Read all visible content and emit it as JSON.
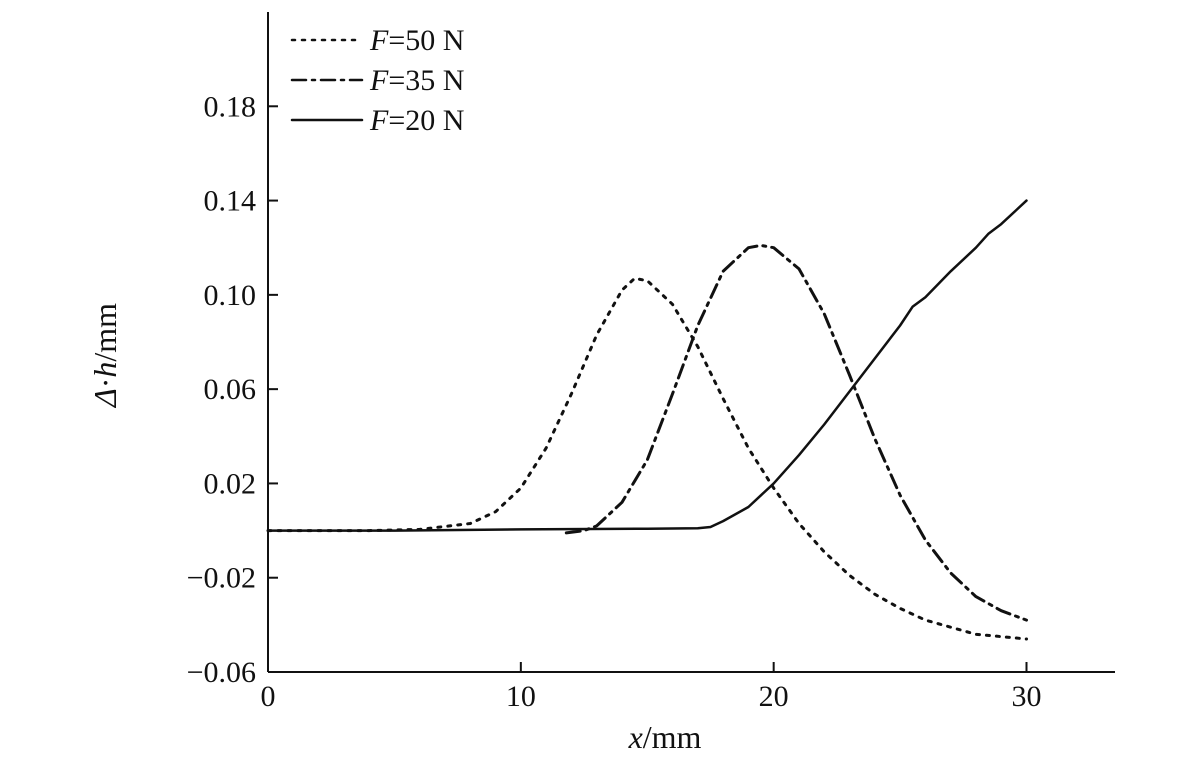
{
  "chart_data": {
    "type": "line",
    "xlabel": {
      "var": "x",
      "unit": "/mm"
    },
    "ylabel": {
      "delta": "Δ",
      "dot": "·",
      "var": "h",
      "unit": "/mm"
    },
    "xlim": [
      0,
      33.5
    ],
    "ylim": [
      -0.06,
      0.22
    ],
    "x_ticks": [
      0,
      10,
      20,
      30
    ],
    "x_tick_labels": [
      "0",
      "10",
      "20",
      "30"
    ],
    "y_ticks": [
      -0.06,
      -0.02,
      0.02,
      0.06,
      0.1,
      0.14,
      0.18
    ],
    "y_tick_labels": [
      "−0.06",
      "−0.02",
      "0.02",
      "0.06",
      "0.10",
      "0.14",
      "0.18"
    ],
    "grid": false,
    "legend_position": "top-left",
    "series": [
      {
        "name": "F=50 N",
        "label_var": "F",
        "label_rest": "=50 N",
        "style": "dotted",
        "color": "#111111",
        "x": [
          0,
          4,
          6,
          8,
          9,
          10,
          11,
          12,
          13,
          14,
          14.5,
          15,
          16,
          17,
          18,
          19,
          20,
          21,
          22,
          23,
          24,
          25,
          26,
          27,
          28,
          29,
          30
        ],
        "y": [
          0.0,
          0.0,
          0.0005,
          0.003,
          0.008,
          0.018,
          0.035,
          0.058,
          0.083,
          0.102,
          0.107,
          0.106,
          0.096,
          0.078,
          0.056,
          0.035,
          0.018,
          0.003,
          -0.009,
          -0.019,
          -0.027,
          -0.033,
          -0.038,
          -0.041,
          -0.044,
          -0.045,
          -0.046
        ]
      },
      {
        "name": "F=35 N",
        "label_var": "F",
        "label_rest": "=35 N",
        "style": "dashdot",
        "color": "#111111",
        "x": [
          11.8,
          12.5,
          13,
          14,
          15,
          16,
          17,
          18,
          19,
          19.5,
          20,
          21,
          22,
          23,
          24,
          25,
          26,
          27,
          28,
          29,
          30
        ],
        "y": [
          -0.001,
          0.0,
          0.002,
          0.012,
          0.03,
          0.058,
          0.087,
          0.11,
          0.12,
          0.121,
          0.12,
          0.111,
          0.092,
          0.066,
          0.039,
          0.015,
          -0.004,
          -0.018,
          -0.028,
          -0.034,
          -0.038
        ]
      },
      {
        "name": "F=20 N",
        "label_var": "F",
        "label_rest": "=20 N",
        "style": "solid",
        "color": "#111111",
        "x": [
          0,
          5,
          10,
          15,
          17,
          17.5,
          18,
          19,
          20,
          21,
          22,
          23,
          24,
          25,
          25.5,
          26,
          27,
          28,
          28.5,
          29,
          30
        ],
        "y": [
          0.0,
          0.0,
          0.0005,
          0.0008,
          0.001,
          0.0015,
          0.004,
          0.01,
          0.02,
          0.032,
          0.045,
          0.059,
          0.073,
          0.087,
          0.095,
          0.099,
          0.11,
          0.12,
          0.126,
          0.13,
          0.14
        ]
      }
    ]
  }
}
